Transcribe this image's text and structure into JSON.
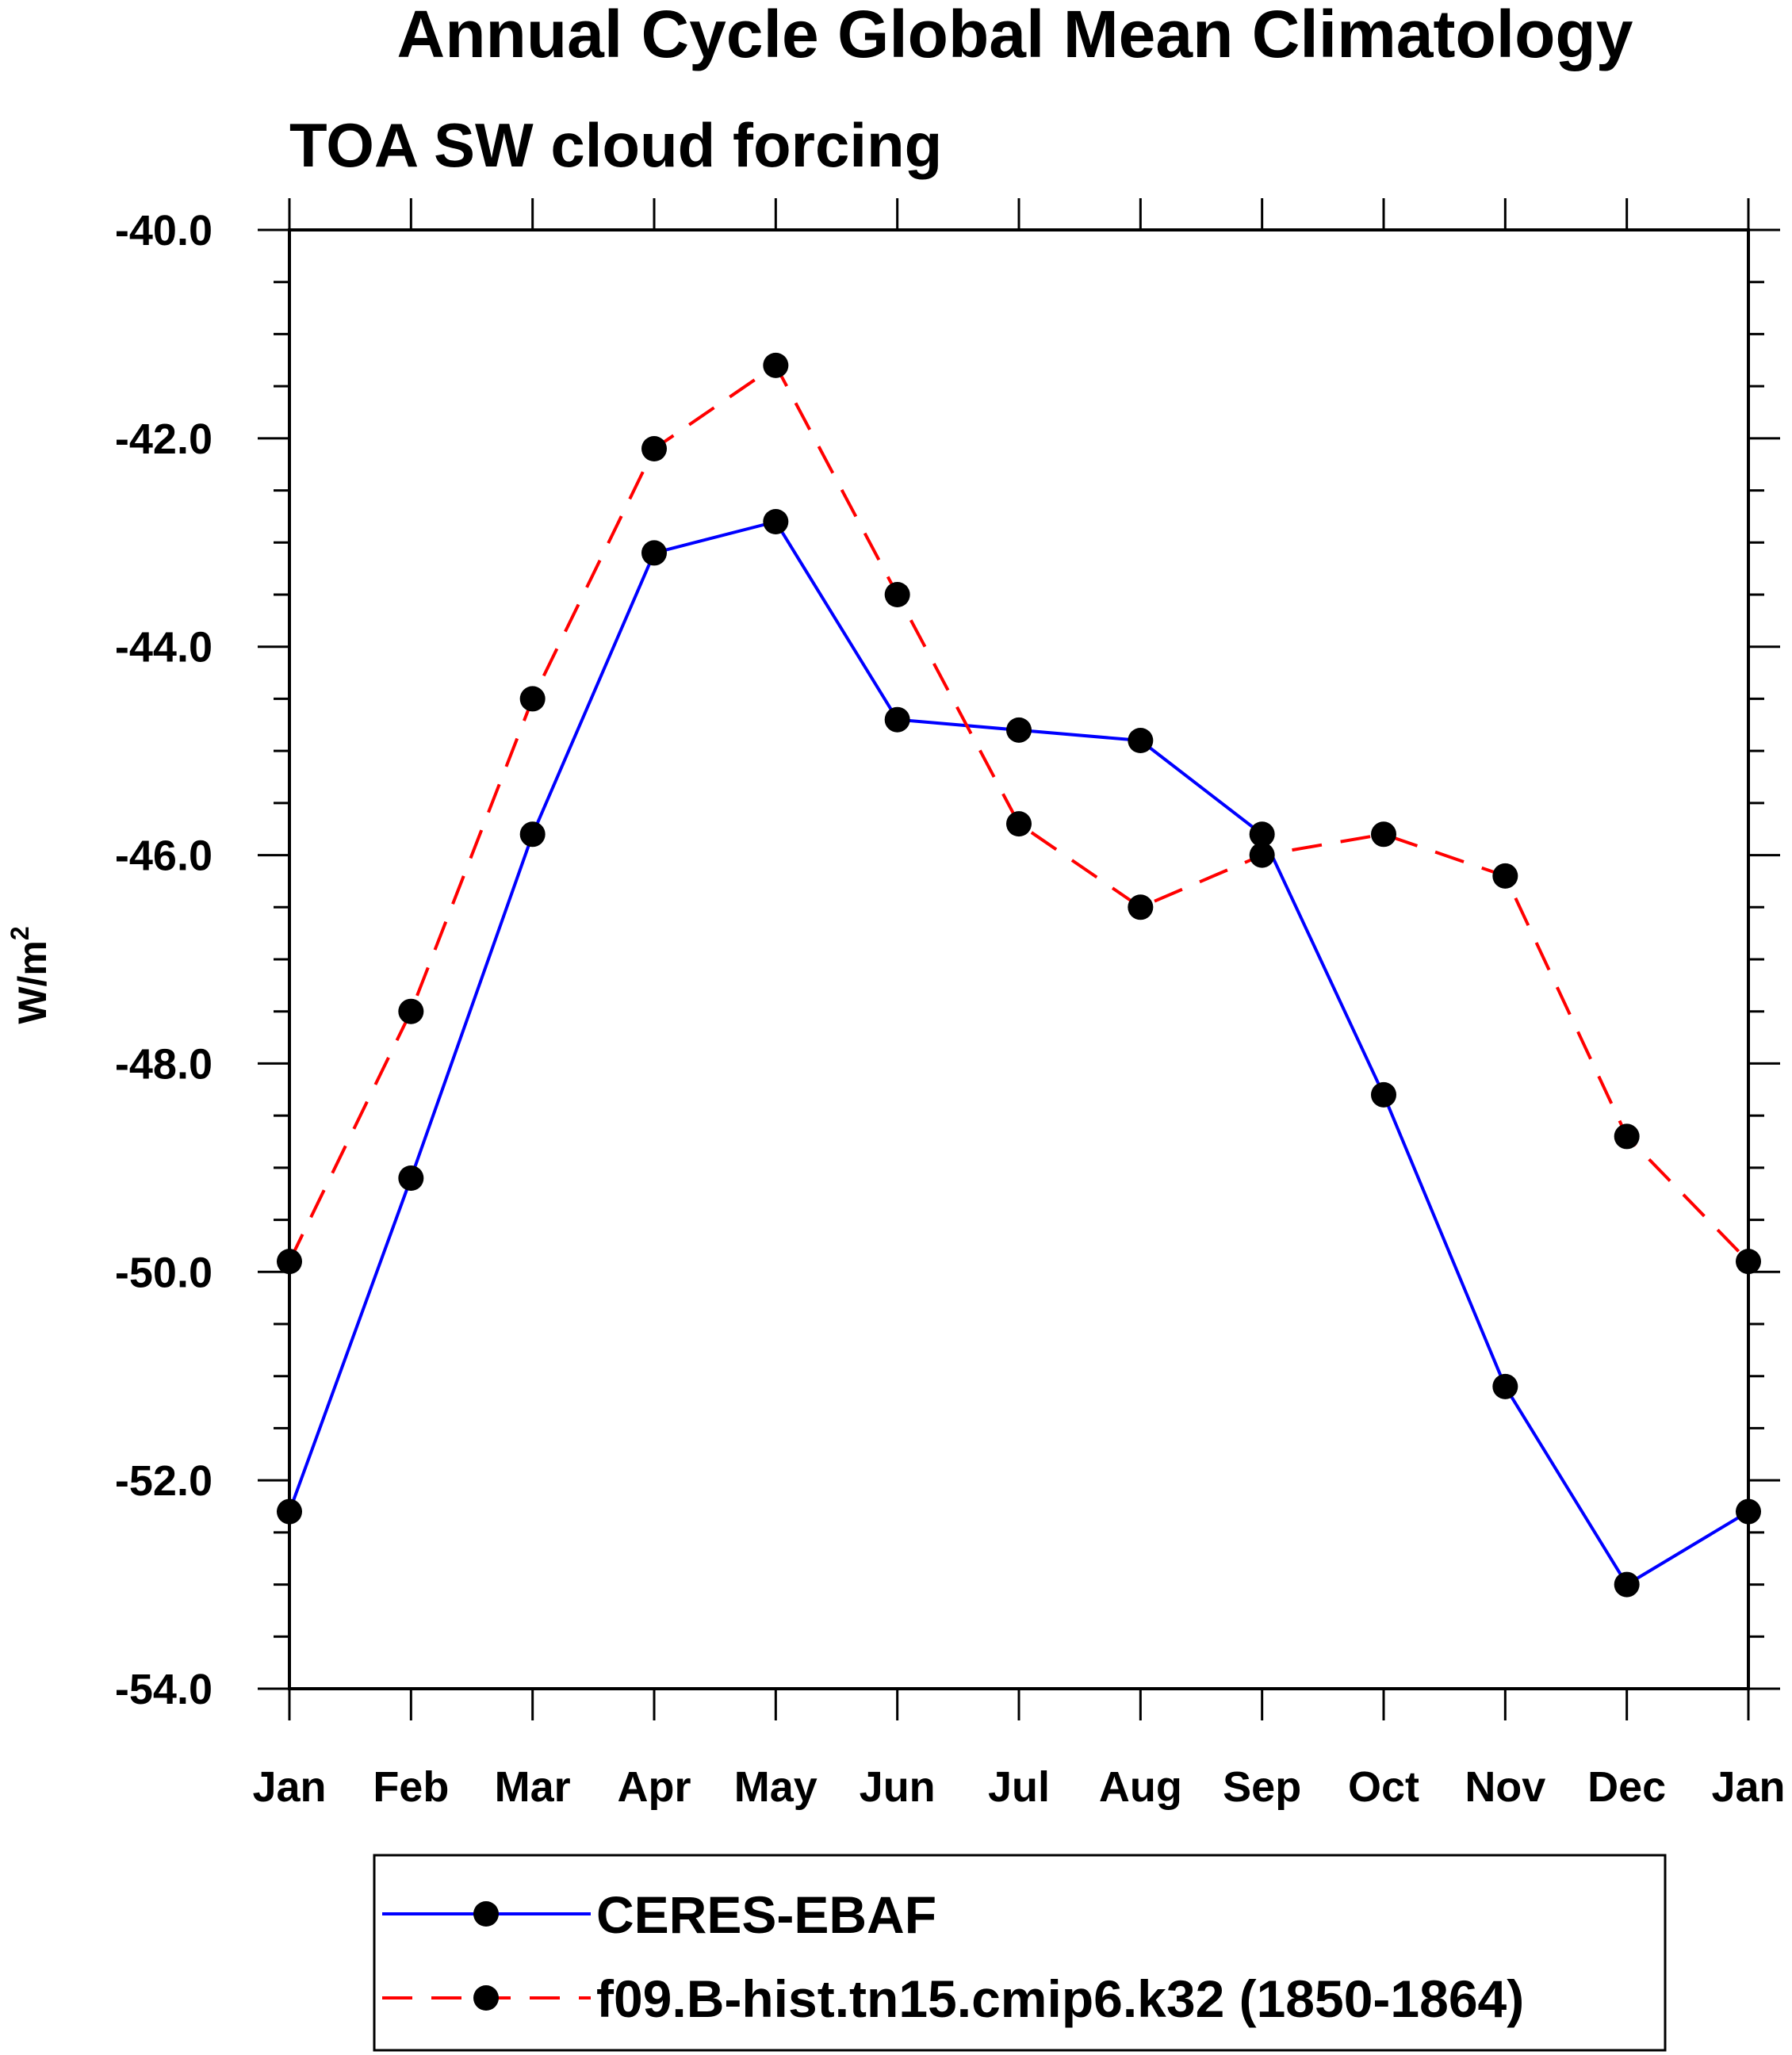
{
  "chart_data": {
    "type": "line",
    "title": "Annual Cycle Global Mean Climatology",
    "subtitle": "TOA SW cloud forcing",
    "ylabel": "W/m",
    "ylabel_superscript": "2",
    "ylim": [
      -54.0,
      -40.0
    ],
    "yticks": [
      "-40.0",
      "-42.0",
      "-44.0",
      "-46.0",
      "-48.0",
      "-50.0",
      "-52.0",
      "-54.0"
    ],
    "categories": [
      "Jan",
      "Feb",
      "Mar",
      "Apr",
      "May",
      "Jun",
      "Jul",
      "Aug",
      "Sep",
      "Oct",
      "Nov",
      "Dec",
      "Jan"
    ],
    "series": [
      {
        "name": "CERES-EBAF",
        "color": "#0000ff",
        "dash": "solid",
        "values": [
          -52.3,
          -49.1,
          -45.8,
          -43.1,
          -42.8,
          -44.7,
          -44.8,
          -44.9,
          -45.8,
          -48.3,
          -51.1,
          -53.0,
          -52.3
        ]
      },
      {
        "name": "f09.B-hist.tn15.cmip6.k32 (1850-1864)",
        "color": "#ff0000",
        "dash": "dashed",
        "values": [
          -49.9,
          -47.5,
          -44.5,
          -42.1,
          -41.3,
          -43.5,
          -45.7,
          -46.5,
          -46.0,
          -45.8,
          -46.2,
          -48.7,
          -49.9
        ]
      }
    ],
    "legend_position": "bottom"
  }
}
